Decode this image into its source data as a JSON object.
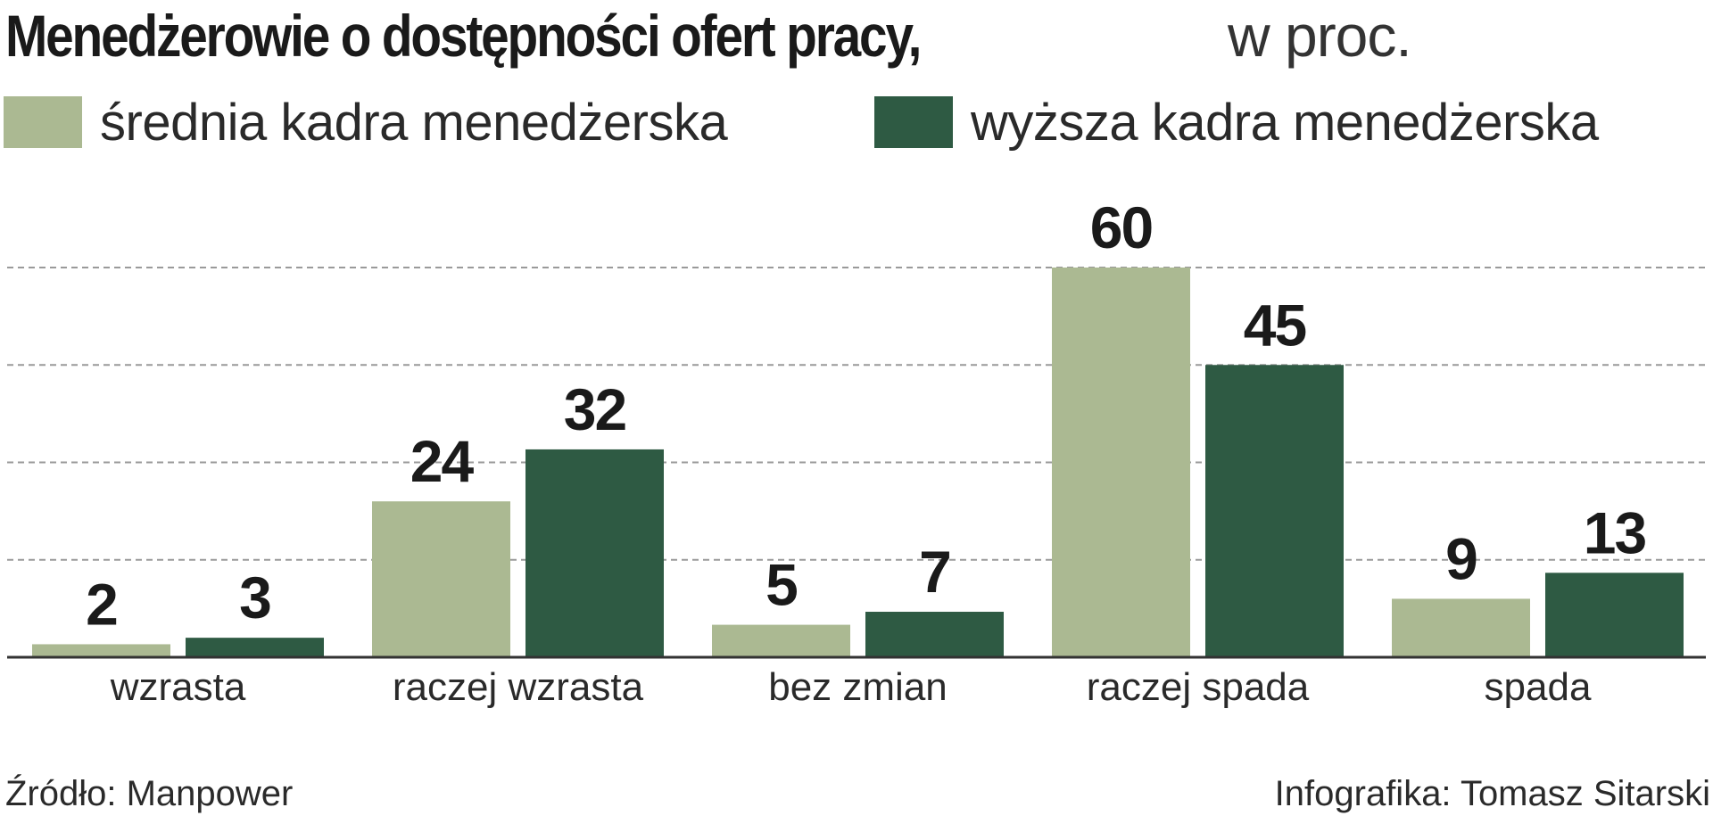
{
  "title": "Menedżerowie o dostępności ofert pracy,",
  "title_unit": "w proc.",
  "source": "Źródło: Manpower",
  "credit": "Infografika: Tomasz Sitarski",
  "colors": {
    "series1": "#abb992",
    "series2": "#2e5a43",
    "grid": "#9a9a9a",
    "axis": "#333333",
    "text": "#1a1a1a"
  },
  "chart_data": {
    "type": "bar",
    "categories": [
      "wzrasta",
      "raczej wzrasta",
      "bez zmian",
      "raczej spada",
      "spada"
    ],
    "series": [
      {
        "name": "średnia kadra menedżerska",
        "values": [
          2,
          24,
          5,
          60,
          9
        ]
      },
      {
        "name": "wyższa kadra menedżerska",
        "values": [
          3,
          32,
          7,
          45,
          13
        ]
      }
    ],
    "title": "Menedżerowie o dostępności ofert pracy, w proc.",
    "xlabel": "",
    "ylabel": "",
    "ylim": [
      0,
      60
    ],
    "grid": true,
    "data_labels": true,
    "legend_position": "top-left"
  }
}
